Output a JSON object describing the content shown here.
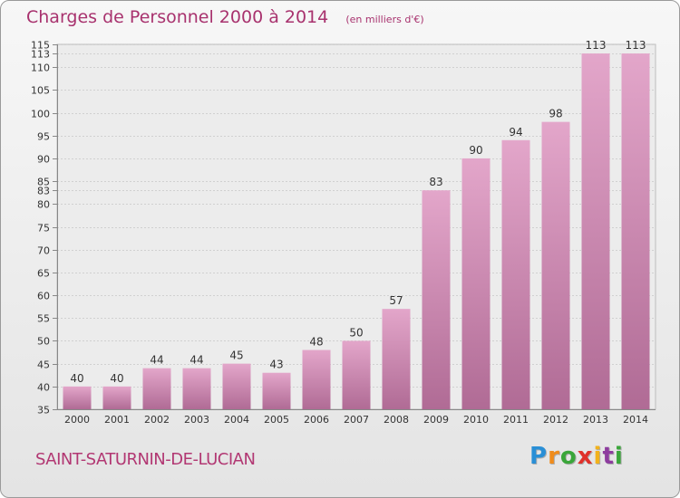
{
  "header": {
    "title": "Charges de Personnel 2000 à 2014",
    "subtitle": "(en milliers d'€)"
  },
  "footer": {
    "town": "SAINT-SATURNIN-DE-LUCIAN",
    "logo_letters": [
      "P",
      "r",
      "o",
      "x",
      "i",
      "t",
      "i"
    ],
    "logo_colors": [
      "#2a8fd6",
      "#f08c1c",
      "#3aa63a",
      "#e0302a",
      "#f2b21c",
      "#8d3c9e",
      "#3aa63a"
    ]
  },
  "chart_data": {
    "type": "bar",
    "title": "Charges de Personnel 2000 à 2014",
    "subtitle": "(en milliers d'€)",
    "categories": [
      "2000",
      "2001",
      "2002",
      "2003",
      "2004",
      "2005",
      "2006",
      "2007",
      "2008",
      "2009",
      "2010",
      "2011",
      "2012",
      "2013",
      "2014"
    ],
    "values": [
      40,
      40,
      44,
      44,
      45,
      43,
      48,
      50,
      57,
      83,
      90,
      94,
      98,
      113,
      113
    ],
    "ylim": [
      35,
      115
    ],
    "yticks": [
      35,
      40,
      45,
      50,
      55,
      60,
      65,
      70,
      75,
      80,
      83,
      85,
      90,
      95,
      100,
      105,
      110,
      113,
      115
    ],
    "grid": true,
    "bar_color": "#d98bb8"
  }
}
